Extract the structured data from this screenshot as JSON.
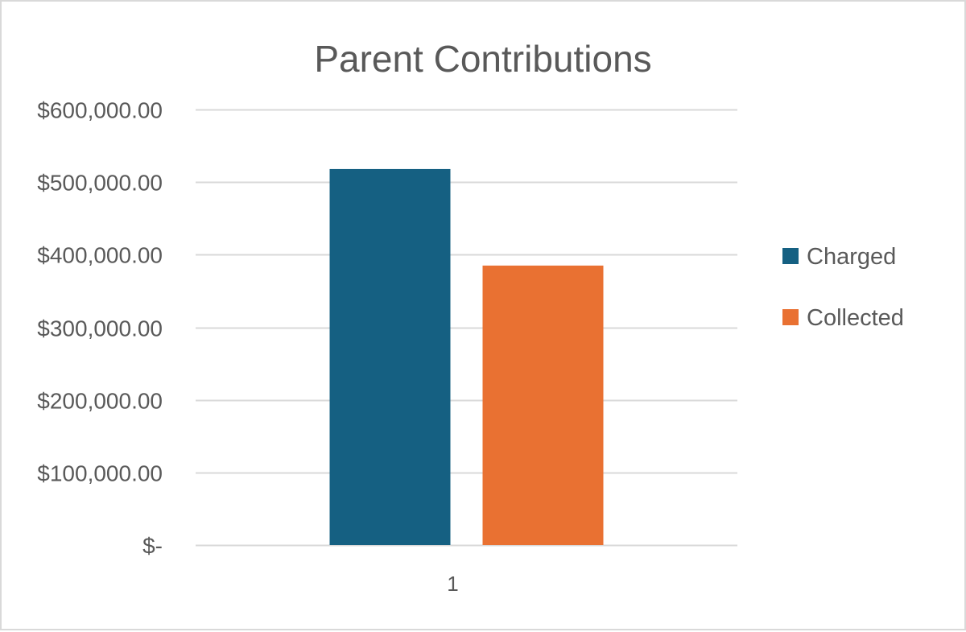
{
  "chart_data": {
    "type": "bar",
    "title": "Parent Contributions",
    "categories": [
      "1"
    ],
    "series": [
      {
        "name": "Charged",
        "values": [
          518000
        ],
        "color": "#156082"
      },
      {
        "name": "Collected",
        "values": [
          385000
        ],
        "color": "#e97132"
      }
    ],
    "xlabel": "",
    "ylabel": "",
    "ylim": [
      0,
      600000
    ],
    "yticks": [
      0,
      100000,
      200000,
      300000,
      400000,
      500000,
      600000
    ],
    "ytick_labels": [
      "$-",
      "$100,000.00",
      "$200,000.00",
      "$300,000.00",
      "$400,000.00",
      "$500,000.00",
      "$600,000.00"
    ],
    "grid": true,
    "gridline_color": "#d9d9d9",
    "legend_position": "right"
  }
}
